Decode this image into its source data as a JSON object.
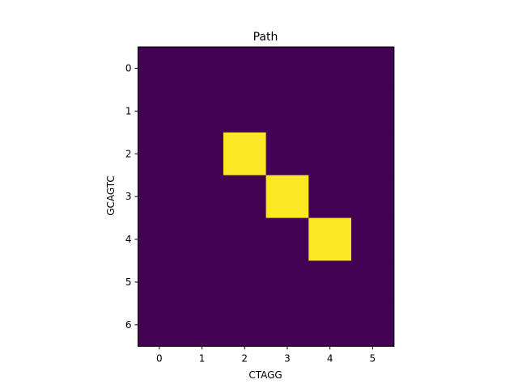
{
  "chart_data": {
    "type": "heatmap",
    "title": "Path",
    "xlabel": "CTAGG",
    "ylabel": "GCAGTC",
    "x_ticks": [
      "0",
      "1",
      "2",
      "3",
      "4",
      "5"
    ],
    "y_ticks": [
      "0",
      "1",
      "2",
      "3",
      "4",
      "5",
      "6"
    ],
    "xlim": [
      -0.5,
      5.5
    ],
    "ylim": [
      6.5,
      -0.5
    ],
    "grid": false,
    "colormap": "viridis",
    "colors": {
      "low": "#440154",
      "high": "#fde725"
    },
    "values": [
      [
        0,
        0,
        0,
        0,
        0,
        0
      ],
      [
        0,
        0,
        0,
        0,
        0,
        0
      ],
      [
        0,
        0,
        1,
        0,
        0,
        0
      ],
      [
        0,
        0,
        0,
        1,
        0,
        0
      ],
      [
        0,
        0,
        0,
        0,
        1,
        0
      ],
      [
        0,
        0,
        0,
        0,
        0,
        0
      ],
      [
        0,
        0,
        0,
        0,
        0,
        0
      ]
    ]
  }
}
